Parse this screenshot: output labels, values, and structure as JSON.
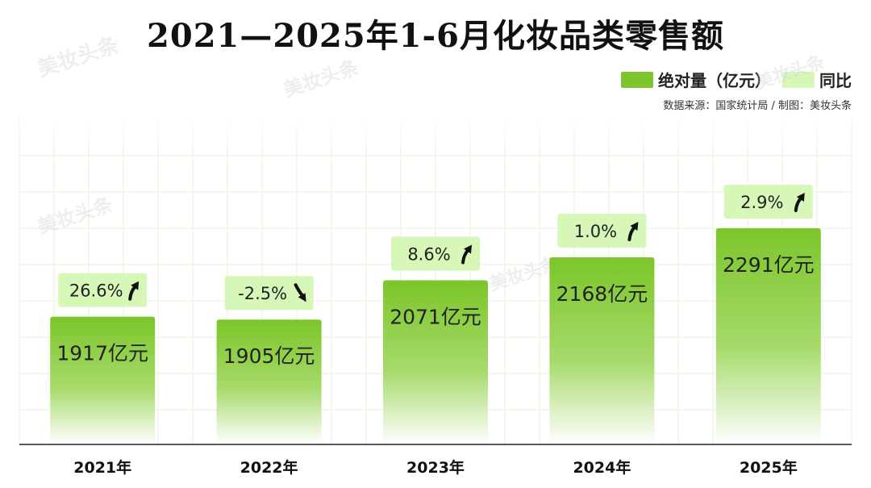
{
  "title": "2021—2025年1-6月化妆品类零售额",
  "legend": {
    "items": [
      {
        "label": "绝对量（亿元）",
        "color": "#7cc52a"
      },
      {
        "label": "同比",
        "color": "#d6f7b8"
      }
    ]
  },
  "source": "数据来源：国家统计局 / 制图：美妆头条",
  "watermark": "美妆头条",
  "colors": {
    "bar_top": "#7cc52a",
    "bar_bottom": "#ffffff",
    "yoy_box": "#d6f7b8",
    "grid": "#eef7e6",
    "up_arrow": "up-arrow-icon",
    "down_arrow": "down-arrow-icon"
  },
  "chart_data": {
    "type": "bar",
    "title": "2021—2025年1-6月化妆品类零售额",
    "categories": [
      "2021年",
      "2022年",
      "2023年",
      "2024年",
      "2025年"
    ],
    "series": [
      {
        "name": "绝对量（亿元）",
        "values": [
          1917,
          1905,
          2071,
          2168,
          2291
        ]
      },
      {
        "name": "同比",
        "values": [
          26.6,
          -2.5,
          8.6,
          1.0,
          2.9
        ]
      }
    ],
    "value_labels": [
      "1917亿元",
      "1905亿元",
      "2071亿元",
      "2168亿元",
      "2291亿元"
    ],
    "yoy_labels": [
      "26.6%",
      "-2.5%",
      "8.6%",
      "1.0%",
      "2.9%"
    ],
    "grid": true,
    "legend_position": "top-right"
  }
}
